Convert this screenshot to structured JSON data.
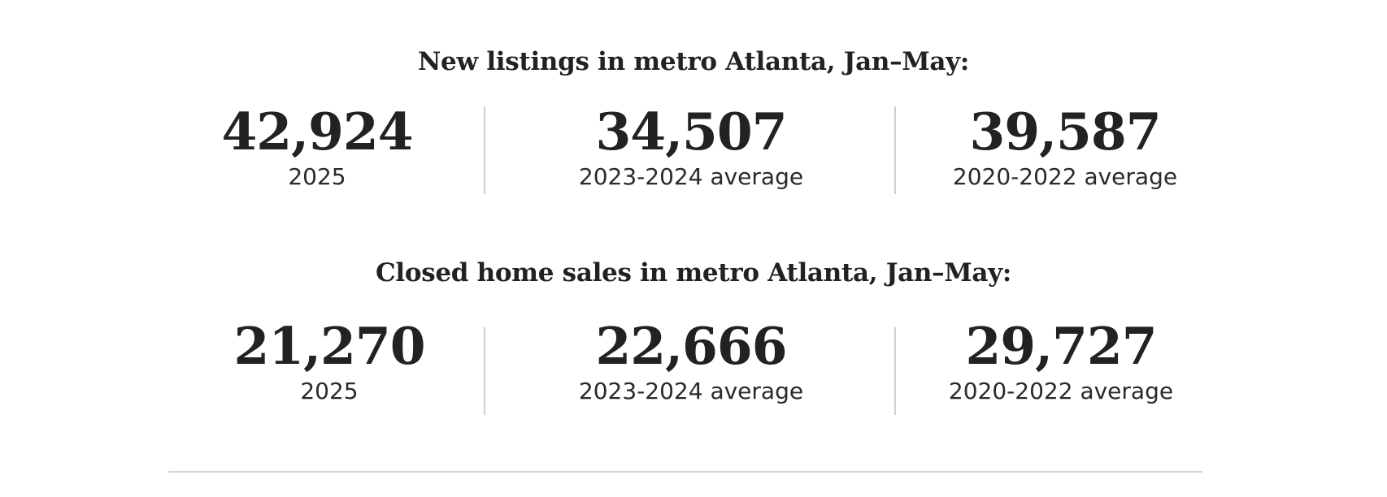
{
  "sections": [
    {
      "heading": "New listings in metro Atlanta, Jan–May:",
      "stats": [
        {
          "value": "42,924",
          "label": "2025"
        },
        {
          "value": "34,507",
          "label": "2023-2024 average"
        },
        {
          "value": "39,587",
          "label": "2020-2022 average"
        }
      ]
    },
    {
      "heading": "Closed home sales in metro Atlanta, Jan–May:",
      "stats": [
        {
          "value": "21,270",
          "label": "2025"
        },
        {
          "value": "22,666",
          "label": "2023-2024 average"
        },
        {
          "value": "29,727",
          "label": "2020-2022 average"
        }
      ]
    }
  ],
  "colors": {
    "text": "#222222",
    "divider": "#cfcfcf",
    "background": "#ffffff"
  }
}
